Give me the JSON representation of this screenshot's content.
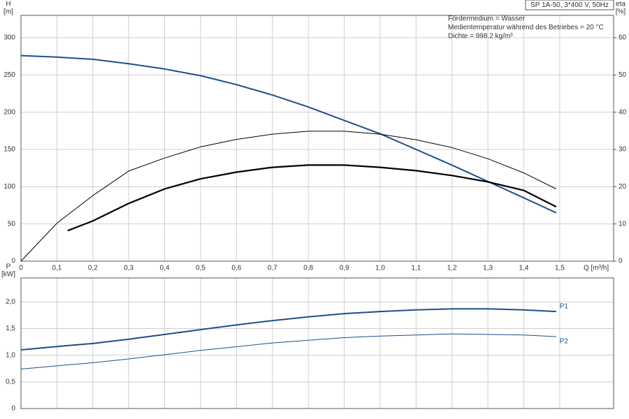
{
  "chart_data": [
    {
      "type": "line",
      "title": "SP 1A-50, 3*400 V, 50Hz",
      "notes": [
        "Fördermedium = Wasser",
        "Medientemperatur während des Betriebes = 20 °C",
        "Dichte = 998.2 kg/m³"
      ],
      "ylabel": "H",
      "yunit": "[m]",
      "y2label": "eta",
      "y2unit": "[%]",
      "xlabel": "Q [m³/h]",
      "xlim": [
        0,
        1.65
      ],
      "ylim": [
        0,
        330
      ],
      "y2lim": [
        0,
        66
      ],
      "xticks": [
        0,
        {
          "value": 0.1,
          "label": "0,1"
        },
        {
          "value": 0.2,
          "label": "0,2"
        },
        {
          "value": 0.3,
          "label": "0,3"
        },
        {
          "value": 0.4,
          "label": "0,4"
        },
        {
          "value": 0.5,
          "label": "0,5"
        },
        {
          "value": 0.6,
          "label": "0,6"
        },
        {
          "value": 0.7,
          "label": "0,7"
        },
        {
          "value": 0.8,
          "label": "0,8"
        },
        {
          "value": 0.9,
          "label": "0,9"
        },
        {
          "value": 1.0,
          "label": "1,0"
        },
        {
          "value": 1.1,
          "label": "1,1"
        },
        {
          "value": 1.2,
          "label": "1,2"
        },
        {
          "value": 1.3,
          "label": "1,3"
        },
        {
          "value": 1.4,
          "label": "1,4"
        },
        {
          "value": 1.5,
          "label": "1,5"
        }
      ],
      "yticks": [
        0,
        50,
        100,
        150,
        200,
        250,
        300
      ],
      "y2ticks": [
        0,
        10,
        20,
        30,
        40,
        50,
        60
      ],
      "grid": true,
      "series": [
        {
          "color": "#1b4f8a",
          "width": 2,
          "x": [
            0,
            0.1,
            0.2,
            0.3,
            0.4,
            0.5,
            0.6,
            0.7,
            0.8,
            0.9,
            1.0,
            1.1,
            1.2,
            1.3,
            1.4,
            1.49
          ],
          "values": [
            276,
            274,
            271,
            265,
            258,
            249,
            237,
            223,
            207,
            189,
            171,
            150,
            129,
            107,
            85,
            65
          ]
        },
        {
          "color": "#000000",
          "width": 1,
          "axis": "y2",
          "x": [
            0,
            0.1,
            0.2,
            0.3,
            0.4,
            0.5,
            0.6,
            0.7,
            0.8,
            0.9,
            1.0,
            1.1,
            1.2,
            1.3,
            1.4,
            1.49
          ],
          "values": [
            0,
            10.2,
            17.6,
            24.2,
            27.7,
            30.7,
            32.7,
            34.1,
            34.9,
            34.9,
            34.1,
            32.6,
            30.5,
            27.5,
            23.7,
            19.4
          ]
        },
        {
          "color": "#000000",
          "width": 2.2,
          "axis": "y2",
          "x": [
            0.13,
            0.2,
            0.3,
            0.4,
            0.5,
            0.6,
            0.7,
            0.8,
            0.9,
            1.0,
            1.1,
            1.2,
            1.3,
            1.4,
            1.49
          ],
          "values": [
            8.2,
            10.8,
            15.5,
            19.4,
            22.1,
            23.9,
            25.2,
            25.8,
            25.8,
            25.2,
            24.3,
            23.0,
            21.3,
            19.0,
            14.6
          ]
        }
      ]
    },
    {
      "type": "line",
      "ylabel": "P",
      "yunit": "[kW]",
      "xlim": [
        0,
        1.65
      ],
      "ylim": [
        0,
        2.45
      ],
      "xticks": [
        0,
        0.1,
        0.2,
        0.3,
        0.4,
        0.5,
        0.6,
        0.7,
        0.8,
        0.9,
        1.0,
        1.1,
        1.2,
        1.3,
        1.4,
        1.5
      ],
      "yticks": [
        0,
        {
          "value": 0.5,
          "label": "0,5"
        },
        {
          "value": 1.0,
          "label": "1,0"
        },
        {
          "value": 1.5,
          "label": "1,5"
        },
        {
          "value": 2.0,
          "label": "2,0"
        }
      ],
      "grid": true,
      "series": [
        {
          "name": "P1",
          "color": "#1b4f8a",
          "width": 2,
          "x": [
            0,
            0.13,
            0.2,
            0.3,
            0.4,
            0.5,
            0.6,
            0.7,
            0.8,
            0.9,
            1.0,
            1.1,
            1.2,
            1.3,
            1.4,
            1.49
          ],
          "values": [
            1.1,
            1.18,
            1.22,
            1.3,
            1.39,
            1.48,
            1.57,
            1.65,
            1.72,
            1.78,
            1.82,
            1.85,
            1.87,
            1.87,
            1.85,
            1.82
          ]
        },
        {
          "name": "P2",
          "color": "#1b4f8a",
          "width": 1,
          "x": [
            0,
            0.1,
            0.2,
            0.3,
            0.4,
            0.5,
            0.6,
            0.7,
            0.8,
            0.9,
            1.0,
            1.1,
            1.2,
            1.3,
            1.4,
            1.49
          ],
          "values": [
            0.74,
            0.8,
            0.86,
            0.93,
            1.01,
            1.09,
            1.16,
            1.23,
            1.28,
            1.33,
            1.36,
            1.38,
            1.4,
            1.39,
            1.38,
            1.35
          ]
        }
      ]
    }
  ]
}
